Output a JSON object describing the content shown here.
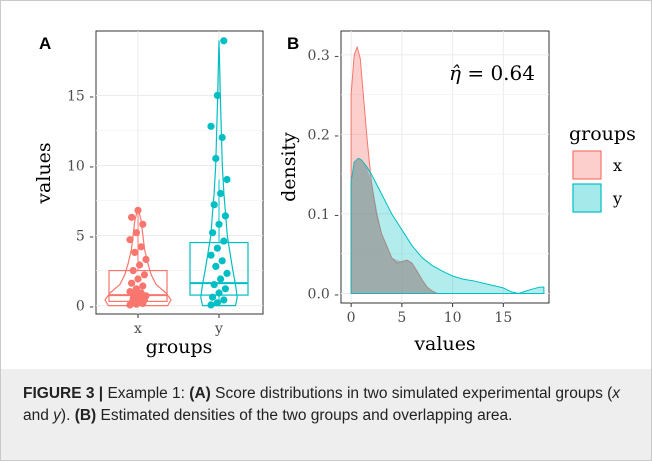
{
  "panel_labels": {
    "a": "A",
    "b": "B"
  },
  "annotation": {
    "symbol": "η̂",
    "text": " = 0.64"
  },
  "legend": {
    "title": "groups",
    "items": [
      {
        "label": "x",
        "color": "#F8766D"
      },
      {
        "label": "y",
        "color": "#00BFC4"
      }
    ]
  },
  "colors": {
    "x": "#F8766D",
    "y": "#00BFC4",
    "grid": "#ebebeb"
  },
  "caption": {
    "figure_label": "FIGURE 3 |",
    "part1": " Example 1: ",
    "bold_a": "(A)",
    "part2": " Score distributions in two simulated experimental groups (",
    "x": "x",
    "and": " and ",
    "y": "y",
    "part3": "). ",
    "bold_b": "(B)",
    "part4": " Estimated densities of the two groups and overlapping area."
  },
  "chart_data": [
    {
      "type": "box+violin+strip",
      "panel": "A",
      "xlabel": "groups",
      "ylabel": "values",
      "categories": [
        "x",
        "y"
      ],
      "ylim": [
        -0.6,
        19.6
      ],
      "yticks": [
        0,
        5,
        10,
        15
      ],
      "ytick_labels": [
        "0 -",
        "5 -",
        "10 -",
        "15 -"
      ],
      "grid": true,
      "boxes": [
        {
          "name": "x",
          "q1": 0.3,
          "median": 0.75,
          "q3": 2.5,
          "whisker_low": 0.0,
          "whisker_high": 6.8
        },
        {
          "name": "y",
          "q1": 0.75,
          "median": 1.6,
          "q3": 4.5,
          "whisker_low": 0.0,
          "whisker_high": 9.0
        }
      ],
      "points": [
        {
          "name": "x",
          "values": [
            0.05,
            0.1,
            0.15,
            0.2,
            0.3,
            0.4,
            0.5,
            0.6,
            0.7,
            0.8,
            0.9,
            1.0,
            1.2,
            1.4,
            1.6,
            1.9,
            2.2,
            2.5,
            2.9,
            3.3,
            3.8,
            4.2,
            4.7,
            5.2,
            5.8,
            6.3,
            6.8
          ]
        },
        {
          "name": "y",
          "values": [
            0.05,
            0.2,
            0.4,
            0.6,
            0.9,
            1.2,
            1.5,
            1.9,
            2.3,
            2.8,
            3.2,
            3.6,
            4.1,
            4.6,
            5.2,
            5.8,
            6.4,
            7.2,
            8.0,
            9.0,
            10.5,
            12.0,
            12.8,
            15.0,
            18.9
          ]
        }
      ],
      "violins": [
        {
          "name": "x",
          "profile": [
            [
              0.0,
              0.9
            ],
            [
              0.4,
              1.0
            ],
            [
              0.9,
              0.85
            ],
            [
              1.5,
              0.55
            ],
            [
              2.2,
              0.4
            ],
            [
              3.0,
              0.3
            ],
            [
              4.0,
              0.2
            ],
            [
              5.0,
              0.15
            ],
            [
              6.0,
              0.1
            ],
            [
              6.8,
              0.02
            ]
          ]
        },
        {
          "name": "y",
          "profile": [
            [
              0.0,
              0.5
            ],
            [
              0.6,
              0.55
            ],
            [
              1.5,
              0.5
            ],
            [
              2.5,
              0.42
            ],
            [
              3.5,
              0.35
            ],
            [
              5.0,
              0.25
            ],
            [
              6.5,
              0.2
            ],
            [
              8.0,
              0.15
            ],
            [
              10.0,
              0.1
            ],
            [
              12.5,
              0.07
            ],
            [
              15.0,
              0.04
            ],
            [
              17.0,
              0.02
            ],
            [
              18.9,
              0.0
            ]
          ]
        }
      ]
    },
    {
      "type": "area",
      "panel": "B",
      "xlabel": "values",
      "ylabel": "density",
      "xlim": [
        -1,
        19.5
      ],
      "ylim": [
        -0.012,
        0.33
      ],
      "xticks": [
        0,
        5,
        10,
        15
      ],
      "yticks": [
        0.0,
        0.1,
        0.2,
        0.3
      ],
      "ytick_labels": [
        "0.0 -",
        "0.1 -",
        "0.2 -",
        "0.3 -"
      ],
      "grid": true,
      "legend_position": "right",
      "series": [
        {
          "name": "x",
          "x": [
            0,
            0.3,
            0.6,
            0.9,
            1.2,
            1.6,
            2.0,
            2.5,
            3.0,
            3.5,
            4.0,
            4.5,
            5.0,
            5.5,
            6.0,
            6.5,
            7.0,
            7.5,
            8.0,
            8.5
          ],
          "y": [
            0.25,
            0.3,
            0.31,
            0.295,
            0.25,
            0.19,
            0.14,
            0.1,
            0.075,
            0.06,
            0.045,
            0.038,
            0.04,
            0.042,
            0.038,
            0.028,
            0.017,
            0.008,
            0.003,
            0.0
          ]
        },
        {
          "name": "y",
          "x": [
            0,
            0.3,
            0.7,
            1.0,
            1.5,
            2.0,
            3.0,
            4.0,
            5.0,
            6.0,
            7.0,
            8.0,
            9.0,
            10.0,
            11.0,
            12.0,
            13.0,
            14.0,
            15.0,
            15.8,
            16.5,
            17.2,
            18.0,
            18.6,
            19.0
          ],
          "y": [
            0.14,
            0.165,
            0.17,
            0.168,
            0.16,
            0.15,
            0.125,
            0.1,
            0.08,
            0.06,
            0.045,
            0.035,
            0.028,
            0.022,
            0.018,
            0.016,
            0.013,
            0.01,
            0.007,
            0.002,
            0.0,
            0.003,
            0.006,
            0.008,
            0.008
          ]
        },
        {
          "name": "overlap",
          "x": [
            0,
            0.3,
            0.7,
            1.0,
            1.5,
            2.0,
            3.0,
            4.0,
            5.0,
            5.5,
            6.0,
            6.5,
            7.0,
            7.5,
            8.0,
            8.5
          ],
          "y": [
            0.14,
            0.165,
            0.17,
            0.168,
            0.16,
            0.14,
            0.075,
            0.045,
            0.04,
            0.042,
            0.038,
            0.028,
            0.017,
            0.008,
            0.003,
            0.0
          ]
        }
      ],
      "annotation": "η̂ = 0.64"
    }
  ]
}
